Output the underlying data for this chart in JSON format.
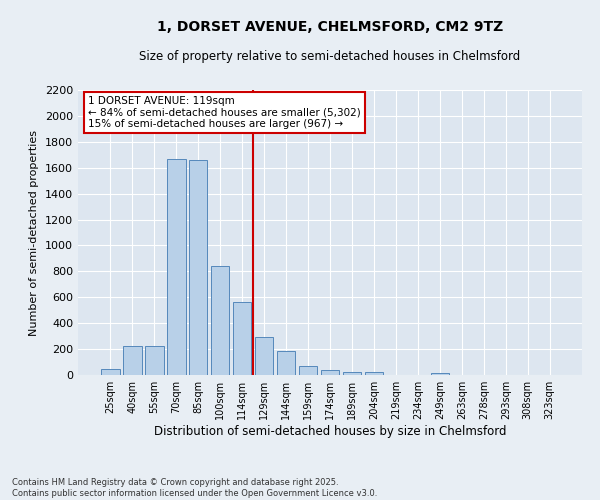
{
  "title": "1, DORSET AVENUE, CHELMSFORD, CM2 9TZ",
  "subtitle": "Size of property relative to semi-detached houses in Chelmsford",
  "xlabel": "Distribution of semi-detached houses by size in Chelmsford",
  "ylabel": "Number of semi-detached properties",
  "bar_labels": [
    "25sqm",
    "40sqm",
    "55sqm",
    "70sqm",
    "85sqm",
    "100sqm",
    "114sqm",
    "129sqm",
    "144sqm",
    "159sqm",
    "174sqm",
    "189sqm",
    "204sqm",
    "219sqm",
    "234sqm",
    "249sqm",
    "263sqm",
    "278sqm",
    "293sqm",
    "308sqm",
    "323sqm"
  ],
  "bar_values": [
    50,
    225,
    225,
    1670,
    1660,
    845,
    565,
    295,
    185,
    70,
    40,
    25,
    20,
    0,
    0,
    15,
    0,
    0,
    0,
    0,
    0
  ],
  "bar_color": "#b8d0e8",
  "bar_edge_color": "#5588bb",
  "highlight_bar_index": 6,
  "vline_color": "#cc0000",
  "annotation_title": "1 DORSET AVENUE: 119sqm",
  "annotation_line1": "← 84% of semi-detached houses are smaller (5,302)",
  "annotation_line2": "15% of semi-detached houses are larger (967) →",
  "annotation_box_color": "#ffffff",
  "annotation_box_edge": "#cc0000",
  "ylim": [
    0,
    2200
  ],
  "yticks": [
    0,
    200,
    400,
    600,
    800,
    1000,
    1200,
    1400,
    1600,
    1800,
    2000,
    2200
  ],
  "background_color": "#e8eef4",
  "plot_bg_color": "#dde6f0",
  "grid_color": "#ffffff",
  "footer_line1": "Contains HM Land Registry data © Crown copyright and database right 2025.",
  "footer_line2": "Contains public sector information licensed under the Open Government Licence v3.0."
}
